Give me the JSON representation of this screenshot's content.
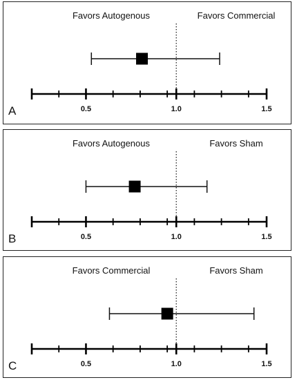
{
  "chart_data": [
    {
      "type": "forest",
      "panel_label": "A",
      "left_label": "Favors Autogenous",
      "right_label": "Favors Commercial",
      "point": 0.81,
      "ci": [
        0.53,
        1.24
      ],
      "reference": 1.0,
      "xlim": [
        0.2,
        1.5
      ],
      "ticks": [
        0.5,
        1.0,
        1.5
      ],
      "tick_labels": [
        "0.5",
        "1.0",
        "1.5"
      ],
      "minor_ticks": [
        0.35,
        0.5,
        0.65,
        0.8,
        0.95,
        1.1,
        1.25,
        1.4
      ],
      "grid": false
    },
    {
      "type": "forest",
      "panel_label": "B",
      "left_label": "Favors Autogenous",
      "right_label": "Favors Sham",
      "point": 0.77,
      "ci": [
        0.5,
        1.17
      ],
      "reference": 1.0,
      "xlim": [
        0.2,
        1.5
      ],
      "ticks": [
        0.5,
        1.0,
        1.5
      ],
      "tick_labels": [
        "0.5",
        "1.0",
        "1.5"
      ],
      "minor_ticks": [
        0.35,
        0.5,
        0.65,
        0.8,
        0.95,
        1.1,
        1.25,
        1.4
      ],
      "grid": false
    },
    {
      "type": "forest",
      "panel_label": "C",
      "left_label": "Favors Commercial",
      "right_label": "Favors Sham",
      "point": 0.95,
      "ci": [
        0.63,
        1.43
      ],
      "reference": 1.0,
      "xlim": [
        0.2,
        1.5
      ],
      "ticks": [
        0.5,
        1.0,
        1.5
      ],
      "tick_labels": [
        "0.5",
        "1.0",
        "1.5"
      ],
      "minor_ticks": [
        0.35,
        0.5,
        0.65,
        0.8,
        0.95,
        1.1,
        1.25,
        1.4
      ],
      "grid": false
    }
  ]
}
